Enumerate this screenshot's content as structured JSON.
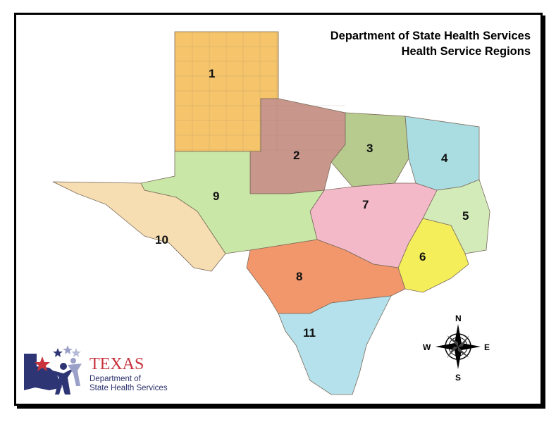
{
  "title": {
    "line1": "Department of State Health Services",
    "line2": "Health Service Regions"
  },
  "regions": [
    {
      "id": "1",
      "color": "#f5c46b"
    },
    {
      "id": "2",
      "color": "#c9968c"
    },
    {
      "id": "3",
      "color": "#b7cb8e"
    },
    {
      "id": "4",
      "color": "#a9dde2"
    },
    {
      "id": "5",
      "color": "#d3ebb9"
    },
    {
      "id": "6",
      "color": "#f4ee5a"
    },
    {
      "id": "7",
      "color": "#f4b9c9"
    },
    {
      "id": "8",
      "color": "#f2966c"
    },
    {
      "id": "9",
      "color": "#c9e7a6"
    },
    {
      "id": "10",
      "color": "#f6ddb2"
    },
    {
      "id": "11",
      "color": "#b4e1eb"
    }
  ],
  "compass": {
    "n": "N",
    "s": "S",
    "e": "E",
    "w": "W"
  },
  "logo": {
    "texas": "TEXAS",
    "line1": "Department of",
    "line2": "State Health Services"
  }
}
